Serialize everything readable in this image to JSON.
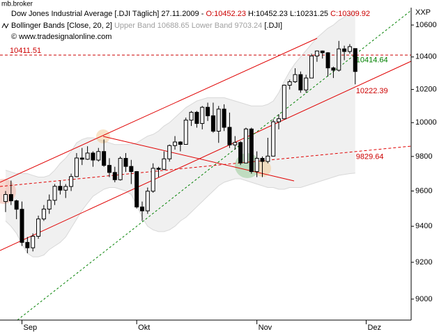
{
  "chart_data": {
    "type": "candlestick",
    "app": "mb.broker",
    "title": "Dow Jones Industrial Average [.DJI  Täglich] 27.11.2009 -",
    "ohlc_labels": [
      "O:",
      "H:",
      "L:",
      "C:"
    ],
    "indicator": {
      "name": "Bollinger Bands [Close, 20, 2]",
      "upper_label": "Upper Band",
      "lower_label": "Lower Band",
      "symbol": "[.DJI]",
      "color": "#f0f0f0",
      "upper": [
        9720,
        9710,
        9700,
        9700,
        9700,
        9690,
        9680,
        9680,
        9690,
        9720,
        9760,
        9790,
        9830,
        9880,
        9900,
        9910,
        9910,
        9900,
        9890,
        9880,
        9870,
        9870,
        9870,
        9870,
        9880,
        9900,
        9920,
        9930,
        9950,
        9980,
        10000,
        10030,
        10060,
        10090,
        10110,
        10130,
        10140,
        10150,
        10150,
        10150,
        10150,
        10140,
        10130,
        10120,
        10110,
        10100,
        10100,
        10100,
        10110,
        10130,
        10180,
        10250,
        10310,
        10360,
        10400,
        10440,
        10480,
        10520,
        10550,
        10580,
        10600,
        10630,
        10650,
        10670,
        10688.65,
        null,
        null
      ],
      "lower": [
        9430,
        9400,
        9360,
        9300,
        9250,
        9230,
        9230,
        9240,
        9270,
        9290,
        9310,
        9340,
        9390,
        9440,
        9490,
        9530,
        9570,
        9590,
        9610,
        9620,
        9620,
        9610,
        9600,
        9580,
        9520,
        9450,
        9400,
        9380,
        9370,
        9370,
        9380,
        9400,
        9430,
        9450,
        9480,
        9510,
        9540,
        9570,
        9600,
        9630,
        9650,
        9660,
        9670,
        9670,
        9660,
        9650,
        9640,
        9630,
        9620,
        9620,
        9610,
        9610,
        9620,
        9620,
        9620,
        9630,
        9640,
        9650,
        9660,
        9670,
        9680,
        9690,
        9695,
        9700,
        9703.24,
        null,
        null
      ]
    },
    "source": "© www.tradesignalonline.com",
    "axis_unit": "XXP",
    "categories": [
      null,
      null,
      null,
      "Sep",
      null,
      null,
      null,
      null,
      null,
      null,
      null,
      null,
      null,
      null,
      null,
      null,
      null,
      null,
      null,
      null,
      null,
      null,
      null,
      null,
      "Okt",
      null,
      null,
      null,
      null,
      null,
      null,
      null,
      null,
      null,
      null,
      null,
      null,
      null,
      null,
      null,
      null,
      null,
      null,
      null,
      null,
      null,
      "Nov",
      null,
      null,
      null,
      null,
      null,
      null,
      null,
      null,
      null,
      null,
      null,
      null,
      null,
      null,
      null,
      null,
      null,
      null,
      null,
      "Dez"
    ],
    "open": [
      9540,
      9580,
      9544,
      9496,
      9310,
      9280,
      9344,
      9441,
      9497,
      9547,
      9627,
      9605,
      9626,
      9683,
      9791,
      9784,
      9820,
      9779,
      9829,
      9748,
      9707,
      9665,
      9789,
      9742,
      9712,
      9509,
      9487,
      9599,
      9731,
      9725,
      9786,
      9864,
      9885,
      9871,
      10015,
      10062,
      9995,
      10092,
      10041,
      9949,
      10081,
      9972,
      9868,
      9882,
      9762,
      9962,
      9712,
      9789,
      9771,
      9802,
      10005,
      10023,
      10226,
      10247,
      10291,
      10197,
      10270,
      10406,
      10437,
      10426,
      10332,
      10318,
      10450,
      10434,
      10452.23,
      null,
      null
    ],
    "high": [
      9600,
      9660,
      9550,
      9540,
      9340,
      9360,
      9460,
      9520,
      9580,
      9640,
      9660,
      9640,
      9700,
      9820,
      9850,
      9860,
      9830,
      9850,
      9900,
      9790,
      9740,
      9800,
      9820,
      9780,
      9715,
      9540,
      9620,
      9760,
      9740,
      9830,
      9870,
      9920,
      9890,
      10030,
      10070,
      10070,
      10100,
      10120,
      10120,
      10100,
      10110,
      10060,
      9920,
      9890,
      9970,
      9970,
      9830,
      9800,
      9910,
      10020,
      10050,
      10230,
      10260,
      10330,
      10310,
      10290,
      10420,
      10440,
      10440,
      10430,
      10340,
      10500,
      10470,
      10480,
      10452.23,
      null,
      null
    ],
    "low": [
      9480,
      9520,
      9440,
      9290,
      9250,
      9260,
      9330,
      9430,
      9470,
      9520,
      9580,
      9560,
      9600,
      9680,
      9750,
      9780,
      9740,
      9770,
      9740,
      9680,
      9650,
      9660,
      9710,
      9640,
      9500,
      9430,
      9470,
      9590,
      9680,
      9720,
      9770,
      9840,
      9830,
      9870,
      9980,
      9970,
      9960,
      10010,
      9940,
      9880,
      9950,
      9850,
      9840,
      9750,
      9760,
      9700,
      9680,
      9680,
      9760,
      9800,
      9960,
      10020,
      10200,
      10240,
      10180,
      10180,
      10270,
      10370,
      10390,
      10280,
      10270,
      10310,
      10380,
      10420,
      10231.25,
      null,
      null
    ],
    "close": [
      9580,
      9544,
      9496,
      9310,
      9280,
      9344,
      9441,
      9497,
      9547,
      9627,
      9605,
      9626,
      9683,
      9791,
      9784,
      9820,
      9779,
      9829,
      9748,
      9707,
      9665,
      9789,
      9742,
      9712,
      9509,
      9487,
      9599,
      9731,
      9725,
      9786,
      9864,
      9885,
      9871,
      10015,
      10062,
      9995,
      10092,
      10041,
      9949,
      10081,
      9972,
      9868,
      9882,
      9762,
      9962,
      9712,
      9789,
      9771,
      9802,
      10005,
      10023,
      10226,
      10247,
      10291,
      10197,
      10270,
      10406,
      10437,
      10426,
      10332,
      10318,
      10450,
      10434,
      10464,
      10309.92,
      null,
      null
    ],
    "up_color": "#ffffff",
    "down_color": "#000000",
    "log_scale": true,
    "ylim": [
      8888,
      10715
    ],
    "yticks": [
      9000,
      9200,
      9400,
      9600,
      9800,
      10000,
      10200,
      10400,
      10600
    ],
    "levels": [
      {
        "value": 10411.51,
        "color": "#cc0000",
        "horizontal": true
      },
      {
        "value": 10414.64,
        "color": "#008000"
      },
      {
        "value": 10222.39,
        "color": "#cc0000"
      },
      {
        "value": 9829.64,
        "color": "#cc0000"
      }
    ]
  }
}
